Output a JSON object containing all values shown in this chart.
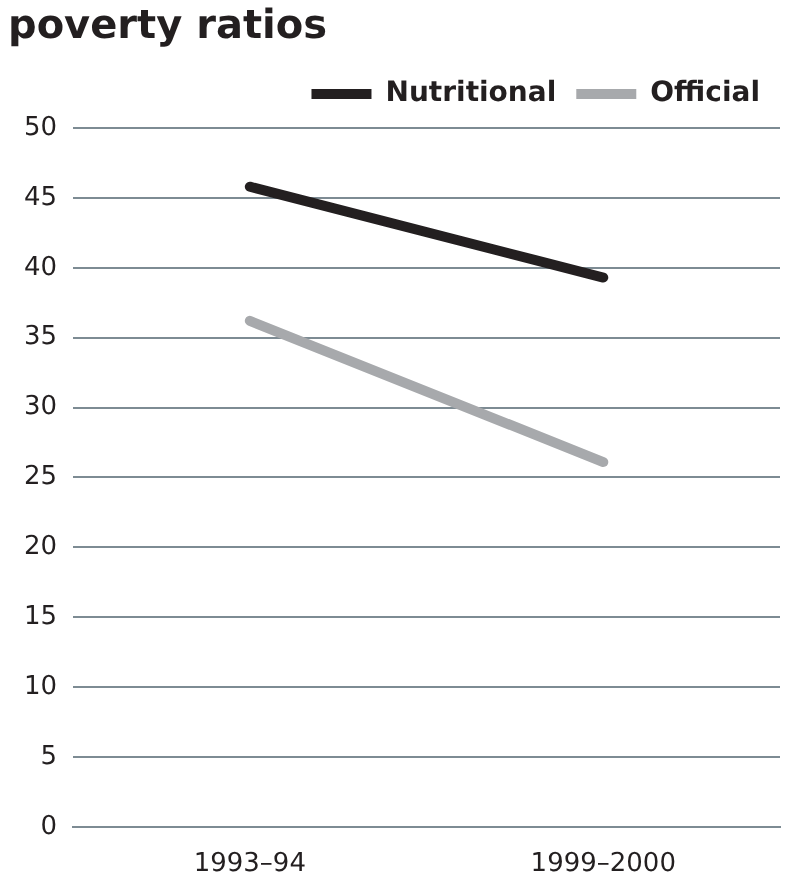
{
  "chart_data": {
    "type": "line",
    "title": "poverty ratios",
    "categories": [
      "1993–94",
      "1999–2000"
    ],
    "series": [
      {
        "name": "Nutritional",
        "color": "#231f20",
        "values": [
          45.8,
          39.3
        ]
      },
      {
        "name": "Official",
        "color": "#a7a9ac",
        "values": [
          36.2,
          26.1
        ]
      }
    ],
    "ylim": [
      0,
      50
    ],
    "yticks": [
      0,
      5,
      10,
      15,
      20,
      25,
      30,
      35,
      40,
      45,
      50
    ],
    "grid": "y",
    "legend": "top right",
    "marker": "none",
    "line_style": "solid"
  }
}
